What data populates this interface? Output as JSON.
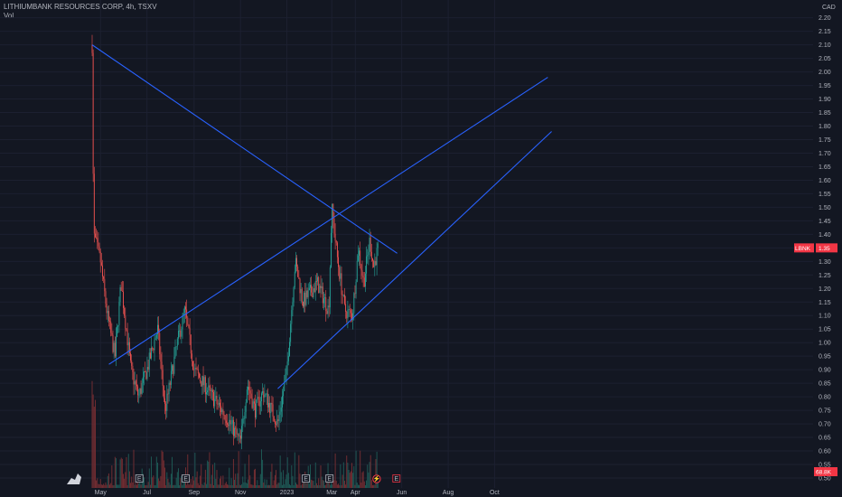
{
  "header": {
    "symbol_line": "LITHIUMBANK RESOURCES CORP, 4h, TSXV",
    "indicator": "Vol"
  },
  "colors": {
    "background": "#131722",
    "up": "#26a69a",
    "down": "#ef5350",
    "trendline": "#2962ff",
    "price_tag": "#f23645",
    "volume_tag": "#f23645"
  },
  "chart_data": {
    "type": "candlestick",
    "currency": "CAD",
    "y_ticks": [
      "2.20",
      "2.15",
      "2.10",
      "2.05",
      "2.00",
      "1.95",
      "1.90",
      "1.85",
      "1.80",
      "1.75",
      "1.70",
      "1.65",
      "1.60",
      "1.55",
      "1.50",
      "1.45",
      "1.40",
      "1.35",
      "1.30",
      "1.25",
      "1.20",
      "1.15",
      "1.10",
      "1.05",
      "1.00",
      "0.95",
      "0.90",
      "0.85",
      "0.80",
      "0.75",
      "0.70",
      "0.65",
      "0.60",
      "0.55",
      "0.50"
    ],
    "ylim": [
      0.5,
      2.225
    ],
    "x_tick_labels": [
      "May",
      "Jul",
      "Sep",
      "Nov",
      "2023",
      "Mar",
      "Apr",
      "Jun",
      "Aug",
      "Oct"
    ],
    "last_price": {
      "ticker": "LBNK",
      "value": "1.35"
    },
    "last_volume": "68.8K",
    "price_path": [
      [
        "2022-04-20",
        2.1
      ],
      [
        "2022-04-22",
        1.4
      ],
      [
        "2022-05-01",
        1.3
      ],
      [
        "2022-05-10",
        1.1
      ],
      [
        "2022-05-20",
        0.95
      ],
      [
        "2022-05-28",
        1.22
      ],
      [
        "2022-06-10",
        0.9
      ],
      [
        "2022-06-20",
        0.8
      ],
      [
        "2022-07-01",
        0.9
      ],
      [
        "2022-07-15",
        1.05
      ],
      [
        "2022-07-25",
        0.75
      ],
      [
        "2022-08-10",
        1.0
      ],
      [
        "2022-08-20",
        1.12
      ],
      [
        "2022-09-01",
        0.9
      ],
      [
        "2022-09-20",
        0.82
      ],
      [
        "2022-10-15",
        0.72
      ],
      [
        "2022-11-01",
        0.63
      ],
      [
        "2022-11-10",
        0.85
      ],
      [
        "2022-11-20",
        0.75
      ],
      [
        "2022-12-01",
        0.82
      ],
      [
        "2022-12-20",
        0.7
      ],
      [
        "2023-01-01",
        0.9
      ],
      [
        "2023-01-12",
        1.3
      ],
      [
        "2023-01-22",
        1.15
      ],
      [
        "2023-02-10",
        1.22
      ],
      [
        "2023-02-25",
        1.12
      ],
      [
        "2023-03-01",
        1.5
      ],
      [
        "2023-03-08",
        1.32
      ],
      [
        "2023-03-18",
        1.12
      ],
      [
        "2023-03-28",
        1.1
      ],
      [
        "2023-04-05",
        1.35
      ],
      [
        "2023-04-12",
        1.22
      ],
      [
        "2023-04-20",
        1.38
      ],
      [
        "2023-04-25",
        1.28
      ],
      [
        "2023-05-01",
        1.35
      ]
    ],
    "trendlines": [
      {
        "name": "",
        "from": [
          "2022-04-20",
          2.1
        ],
        "to": [
          "2023-05-26",
          1.33
        ]
      },
      {
        "name": "",
        "from": [
          "2022-05-12",
          0.92
        ],
        "to": [
          "2023-12-10",
          1.98
        ]
      },
      {
        "name": "",
        "from": [
          "2022-12-20",
          0.83
        ],
        "to": [
          "2023-12-15",
          1.78
        ]
      }
    ],
    "event_markers": [
      {
        "date": "2022-06-21",
        "label": "E"
      },
      {
        "date": "2022-08-21",
        "label": "E"
      },
      {
        "date": "2023-01-26",
        "label": "E"
      },
      {
        "date": "2023-02-26",
        "label": "E"
      },
      {
        "date": "2023-04-29",
        "label": "⚡"
      },
      {
        "date": "2023-05-25",
        "label": "E"
      }
    ]
  }
}
